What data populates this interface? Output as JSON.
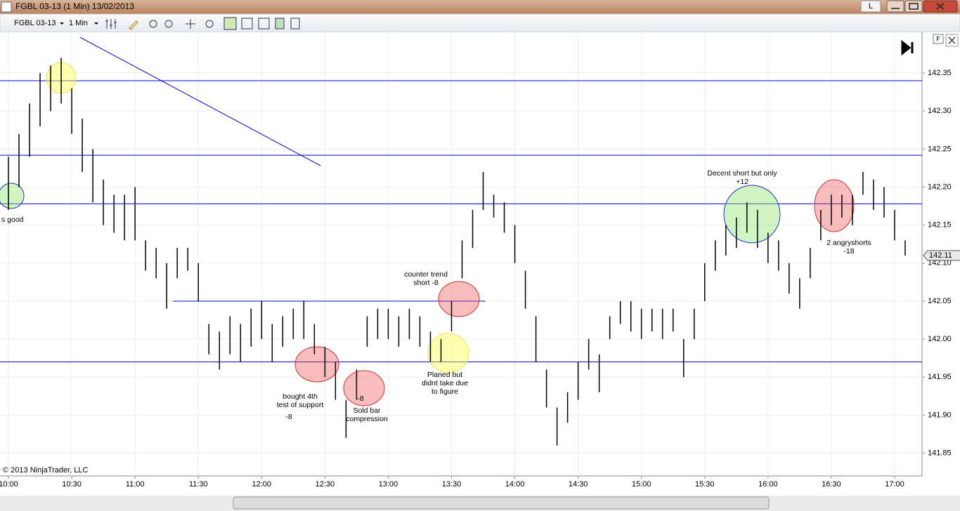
{
  "window": {
    "title": "FGBL 03-13 (1 Min)  13/02/2013",
    "button": "L"
  },
  "toolbar": {
    "instrument": "FGBL 03-13",
    "interval": "1 Min"
  },
  "chart_data": {
    "type": "range",
    "copyright": "© 2013 NinjaTrader, LLC",
    "last_price": 142.11,
    "panel_button": "F",
    "x": [
      600,
      605,
      610,
      615,
      620,
      625,
      630,
      635,
      640,
      645,
      650,
      655,
      660,
      665,
      670,
      675,
      680,
      685,
      690,
      695,
      700,
      705,
      710,
      715,
      720,
      725,
      730,
      735,
      740,
      745,
      750,
      755,
      760,
      765,
      770,
      775,
      780,
      785,
      790,
      795,
      800,
      805,
      810,
      815,
      820,
      825,
      830,
      835,
      840,
      845,
      850,
      855,
      860,
      865,
      870,
      875,
      880,
      885,
      890,
      895,
      900,
      905,
      910,
      915,
      920,
      925,
      930,
      935,
      940,
      945,
      950,
      955,
      960,
      965,
      970,
      975,
      980,
      985,
      990,
      995,
      1000,
      1005,
      1010,
      1015,
      1020,
      1025
    ],
    "high": [
      142.24,
      142.27,
      142.31,
      142.35,
      142.36,
      142.37,
      142.33,
      142.29,
      142.25,
      142.21,
      142.19,
      142.19,
      142.2,
      142.13,
      142.12,
      142.1,
      142.12,
      142.12,
      142.1,
      142.02,
      142.01,
      142.03,
      142.02,
      142.04,
      142.05,
      142.02,
      142.03,
      142.04,
      142.05,
      142.02,
      141.99,
      141.97,
      141.92,
      141.96,
      142.03,
      142.04,
      142.04,
      142.03,
      142.04,
      142.03,
      142.01,
      142.0,
      142.05,
      142.13,
      142.17,
      142.22,
      142.19,
      142.18,
      142.15,
      142.09,
      142.03,
      141.96,
      141.91,
      141.93,
      141.97,
      142.0,
      141.98,
      142.03,
      142.05,
      142.05,
      142.04,
      142.04,
      142.04,
      142.04,
      142.0,
      142.04,
      142.1,
      142.13,
      142.15,
      142.16,
      142.18,
      142.17,
      142.14,
      142.13,
      142.1,
      142.08,
      142.12,
      142.17,
      142.19,
      142.19,
      142.19,
      142.22,
      142.21,
      142.2,
      142.17,
      142.13
    ],
    "low": [
      142.17,
      142.2,
      142.24,
      142.28,
      142.3,
      142.31,
      142.27,
      142.22,
      142.18,
      142.15,
      142.14,
      142.13,
      142.13,
      142.09,
      142.08,
      142.04,
      142.08,
      142.09,
      142.05,
      141.98,
      141.96,
      141.98,
      141.97,
      141.99,
      142.0,
      141.97,
      141.99,
      142.0,
      142.0,
      141.98,
      141.95,
      141.92,
      141.87,
      141.92,
      141.99,
      142.0,
      142.0,
      141.99,
      142.0,
      141.99,
      141.97,
      141.97,
      142.01,
      142.08,
      142.12,
      142.17,
      142.16,
      142.14,
      142.1,
      142.04,
      141.97,
      141.91,
      141.86,
      141.89,
      141.92,
      141.96,
      141.93,
      142.0,
      142.02,
      142.01,
      142.0,
      142.01,
      142.0,
      142.01,
      141.95,
      142.0,
      142.05,
      142.09,
      142.11,
      142.12,
      142.14,
      142.12,
      142.1,
      142.09,
      142.06,
      142.04,
      142.08,
      142.13,
      142.15,
      142.16,
      142.15,
      142.19,
      142.17,
      142.16,
      142.13,
      142.11
    ],
    "xlim": [
      596,
      1033
    ],
    "ylim": [
      141.82,
      142.4
    ],
    "xticks": [
      {
        "value": 600,
        "label": "10:00"
      },
      {
        "value": 630,
        "label": "10:30"
      },
      {
        "value": 660,
        "label": "11:00"
      },
      {
        "value": 690,
        "label": "11:30"
      },
      {
        "value": 720,
        "label": "12:00"
      },
      {
        "value": 750,
        "label": "12:30"
      },
      {
        "value": 780,
        "label": "13:00"
      },
      {
        "value": 810,
        "label": "13:30"
      },
      {
        "value": 840,
        "label": "14:00"
      },
      {
        "value": 870,
        "label": "14:30"
      },
      {
        "value": 900,
        "label": "15:00"
      },
      {
        "value": 930,
        "label": "15:30"
      },
      {
        "value": 960,
        "label": "16:00"
      },
      {
        "value": 990,
        "label": "16:30"
      },
      {
        "value": 1020,
        "label": "17:00"
      }
    ],
    "yticks": [
      142.35,
      {
        "value": 142.3,
        "label": "142.30"
      },
      142.25,
      {
        "value": 142.2,
        "label": "142.20"
      },
      142.15,
      {
        "value": 142.1,
        "label": "142.10"
      },
      142.05,
      {
        "value": 142.0,
        "label": "142.00"
      },
      141.95,
      {
        "value": 141.9,
        "label": "141.90"
      },
      141.85
    ],
    "grid": true,
    "color": "#000000",
    "line_color": "#0000cc",
    "lines": [
      {
        "y": 142.34
      },
      {
        "y": 142.242
      },
      {
        "y": 142.178
      },
      {
        "y": 141.97
      },
      {
        "x": [
          678,
          826
        ],
        "y": [
          142.05,
          142.05
        ]
      },
      {
        "x": [
          634,
          748
        ],
        "y": [
          142.397,
          142.228
        ]
      }
    ],
    "annotations": [
      {
        "lines": [
          "s good"
        ]
      },
      {
        "lines": [
          "Decent short but only",
          "+12"
        ]
      },
      {
        "lines": [
          "2 angryshorts",
          "-18"
        ]
      },
      {
        "lines": [
          "counter trend",
          "short -8"
        ]
      },
      {
        "lines": [
          "bought 4th",
          "test of support"
        ]
      },
      {
        "lines": [
          "-8"
        ]
      },
      {
        "lines": [
          "-8"
        ]
      },
      {
        "lines": [
          "Sold bar",
          "compression"
        ]
      },
      {
        "lines": [
          "Planed but",
          "didnt take due",
          "to figure"
        ]
      }
    ]
  }
}
